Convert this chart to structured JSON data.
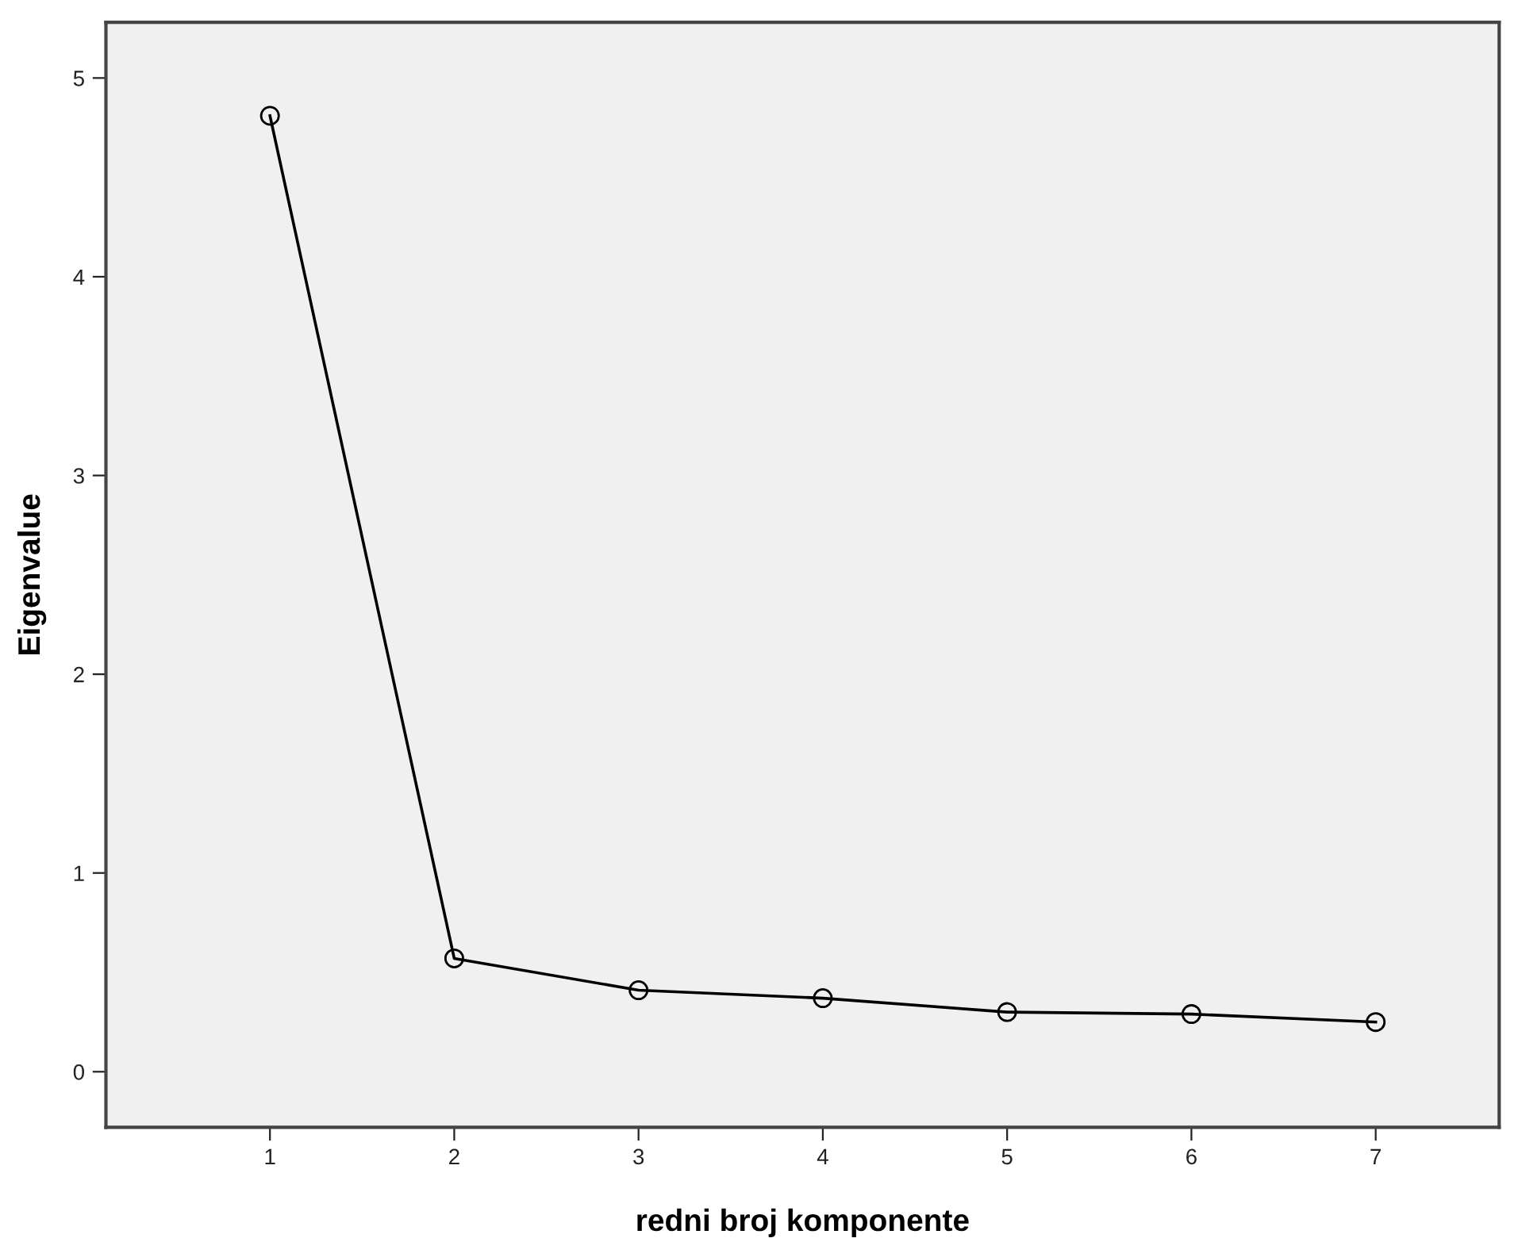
{
  "chart_data": {
    "type": "line",
    "xlabel": "redni broj komponente",
    "ylabel": "Eigenvalue",
    "x": [
      1,
      2,
      3,
      4,
      5,
      6,
      7
    ],
    "series": [
      {
        "color": "#000000",
        "values": [
          4.81,
          0.57,
          0.41,
          0.37,
          0.3,
          0.29,
          0.25
        ]
      }
    ],
    "marker": "circle",
    "line_style": "solid",
    "grid": false,
    "legend": false,
    "xlim": [
      0.11,
      7.67
    ],
    "xticks": [
      1,
      2,
      3,
      4,
      5,
      6,
      7
    ],
    "ylim": [
      -0.28,
      5.28
    ],
    "yticks": [
      0,
      1,
      2,
      3,
      4,
      5
    ]
  }
}
